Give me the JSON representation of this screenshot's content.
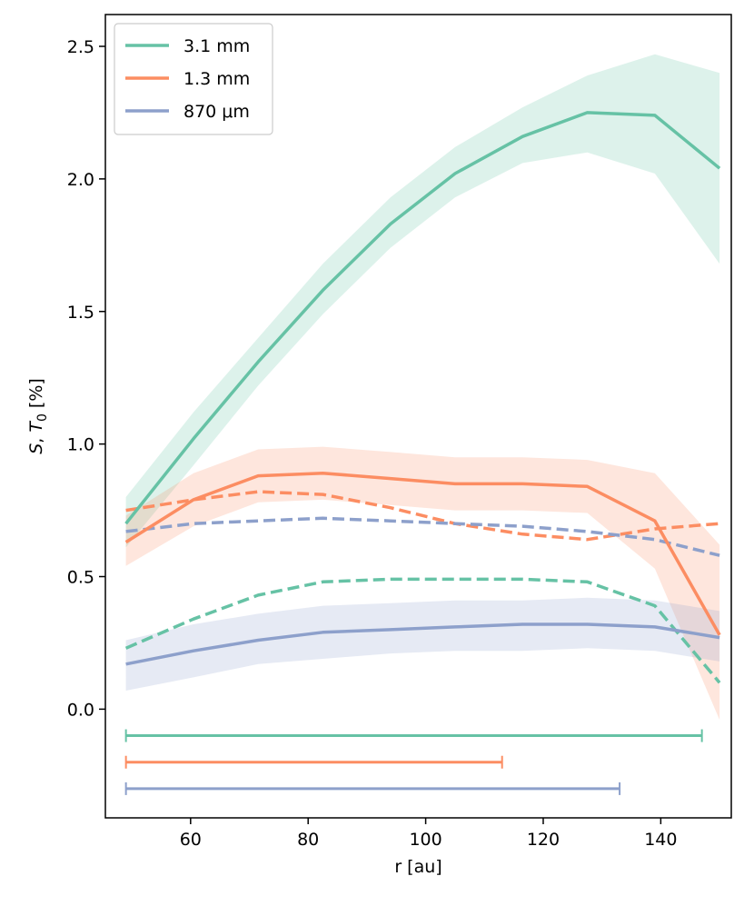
{
  "chart_data": {
    "type": "line",
    "xlabel": "r [au]",
    "ylabel": "S, T_0 [%]",
    "xlim": [
      45.5,
      152
    ],
    "ylim": [
      -0.41,
      2.62
    ],
    "xticks": [
      60,
      80,
      100,
      120,
      140
    ],
    "yticks": [
      0.0,
      0.5,
      1.0,
      1.5,
      2.0,
      2.5
    ],
    "xtick_labels": [
      "60",
      "80",
      "100",
      "120",
      "140"
    ],
    "ytick_labels": [
      "0.0",
      "0.5",
      "1.0",
      "1.5",
      "2.0",
      "2.5"
    ],
    "grid": false,
    "legend_position": "top-left",
    "x": [
      49,
      60.5,
      71.5,
      82.5,
      94,
      105,
      116.5,
      127.5,
      139,
      150
    ],
    "series": [
      {
        "name": "3.1 mm",
        "color": "#66c2a5",
        "style": "solid",
        "values": [
          0.7,
          1.02,
          1.31,
          1.58,
          1.83,
          2.02,
          2.16,
          2.25,
          2.24,
          2.04
        ],
        "lower": [
          0.61,
          0.92,
          1.22,
          1.49,
          1.74,
          1.93,
          2.06,
          2.1,
          2.02,
          1.68
        ],
        "upper": [
          0.8,
          1.12,
          1.4,
          1.68,
          1.93,
          2.12,
          2.27,
          2.39,
          2.47,
          2.4
        ]
      },
      {
        "name": "1.3 mm",
        "color": "#fc8d62",
        "style": "solid",
        "values": [
          0.63,
          0.79,
          0.88,
          0.89,
          0.87,
          0.85,
          0.85,
          0.84,
          0.71,
          0.28
        ],
        "lower": [
          0.54,
          0.69,
          0.78,
          0.79,
          0.77,
          0.75,
          0.75,
          0.74,
          0.53,
          -0.04
        ],
        "upper": [
          0.73,
          0.89,
          0.98,
          0.99,
          0.97,
          0.95,
          0.95,
          0.94,
          0.89,
          0.62
        ]
      },
      {
        "name": "870 μm",
        "color": "#8da0cb",
        "style": "solid",
        "values": [
          0.17,
          0.22,
          0.26,
          0.29,
          0.3,
          0.31,
          0.32,
          0.32,
          0.31,
          0.27
        ],
        "lower": [
          0.07,
          0.12,
          0.17,
          0.19,
          0.21,
          0.22,
          0.22,
          0.23,
          0.22,
          0.18
        ],
        "upper": [
          0.26,
          0.32,
          0.36,
          0.39,
          0.4,
          0.41,
          0.41,
          0.42,
          0.41,
          0.37
        ]
      },
      {
        "color": "#66c2a5",
        "style": "dashed",
        "values": [
          0.23,
          0.34,
          0.43,
          0.48,
          0.49,
          0.49,
          0.49,
          0.48,
          0.39,
          0.1
        ]
      },
      {
        "color": "#fc8d62",
        "style": "dashed",
        "values": [
          0.75,
          0.79,
          0.82,
          0.81,
          0.76,
          0.7,
          0.66,
          0.64,
          0.68,
          0.7
        ]
      },
      {
        "color": "#8da0cb",
        "style": "dashed",
        "values": [
          0.67,
          0.7,
          0.71,
          0.72,
          0.71,
          0.7,
          0.69,
          0.67,
          0.64,
          0.58
        ]
      }
    ],
    "ranges": [
      {
        "color": "#66c2a5",
        "y": -0.1,
        "x_start": 49,
        "x_end": 147
      },
      {
        "color": "#fc8d62",
        "y": -0.2,
        "x_start": 49,
        "x_end": 113
      },
      {
        "color": "#8da0cb",
        "y": -0.3,
        "x_start": 49,
        "x_end": 133
      }
    ]
  }
}
